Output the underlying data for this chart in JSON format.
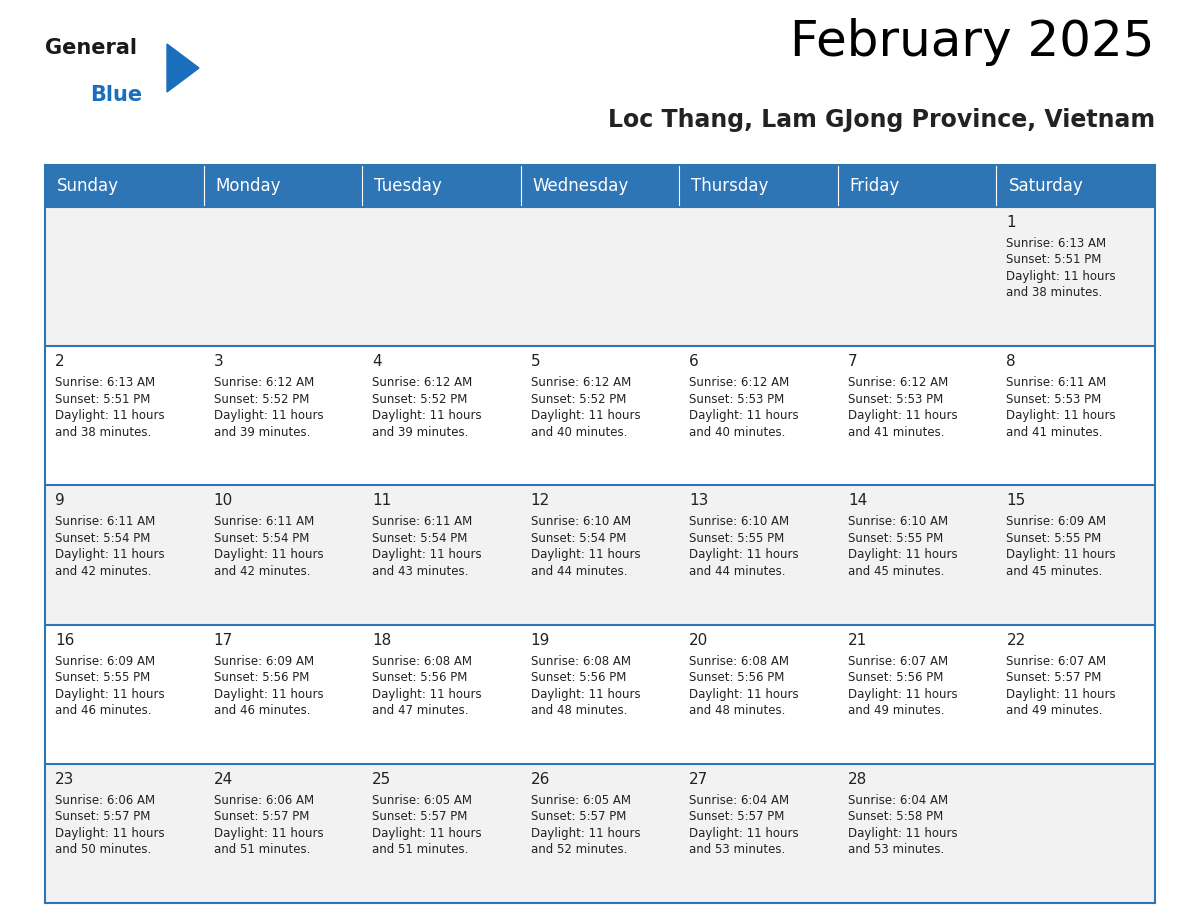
{
  "title": "February 2025",
  "subtitle": "Loc Thang, Lam GJong Province, Vietnam",
  "header_bg": "#2E75B6",
  "header_text_color": "#FFFFFF",
  "days_of_week": [
    "Sunday",
    "Monday",
    "Tuesday",
    "Wednesday",
    "Thursday",
    "Friday",
    "Saturday"
  ],
  "row_bg_odd": "#F2F2F2",
  "row_bg_even": "#FFFFFF",
  "cell_border_color": "#2E75B6",
  "text_color": "#222222",
  "day_number_color": "#222222",
  "calendar": [
    [
      {
        "day": null,
        "info": null
      },
      {
        "day": null,
        "info": null
      },
      {
        "day": null,
        "info": null
      },
      {
        "day": null,
        "info": null
      },
      {
        "day": null,
        "info": null
      },
      {
        "day": null,
        "info": null
      },
      {
        "day": 1,
        "info": "Sunrise: 6:13 AM\nSunset: 5:51 PM\nDaylight: 11 hours\nand 38 minutes."
      }
    ],
    [
      {
        "day": 2,
        "info": "Sunrise: 6:13 AM\nSunset: 5:51 PM\nDaylight: 11 hours\nand 38 minutes."
      },
      {
        "day": 3,
        "info": "Sunrise: 6:12 AM\nSunset: 5:52 PM\nDaylight: 11 hours\nand 39 minutes."
      },
      {
        "day": 4,
        "info": "Sunrise: 6:12 AM\nSunset: 5:52 PM\nDaylight: 11 hours\nand 39 minutes."
      },
      {
        "day": 5,
        "info": "Sunrise: 6:12 AM\nSunset: 5:52 PM\nDaylight: 11 hours\nand 40 minutes."
      },
      {
        "day": 6,
        "info": "Sunrise: 6:12 AM\nSunset: 5:53 PM\nDaylight: 11 hours\nand 40 minutes."
      },
      {
        "day": 7,
        "info": "Sunrise: 6:12 AM\nSunset: 5:53 PM\nDaylight: 11 hours\nand 41 minutes."
      },
      {
        "day": 8,
        "info": "Sunrise: 6:11 AM\nSunset: 5:53 PM\nDaylight: 11 hours\nand 41 minutes."
      }
    ],
    [
      {
        "day": 9,
        "info": "Sunrise: 6:11 AM\nSunset: 5:54 PM\nDaylight: 11 hours\nand 42 minutes."
      },
      {
        "day": 10,
        "info": "Sunrise: 6:11 AM\nSunset: 5:54 PM\nDaylight: 11 hours\nand 42 minutes."
      },
      {
        "day": 11,
        "info": "Sunrise: 6:11 AM\nSunset: 5:54 PM\nDaylight: 11 hours\nand 43 minutes."
      },
      {
        "day": 12,
        "info": "Sunrise: 6:10 AM\nSunset: 5:54 PM\nDaylight: 11 hours\nand 44 minutes."
      },
      {
        "day": 13,
        "info": "Sunrise: 6:10 AM\nSunset: 5:55 PM\nDaylight: 11 hours\nand 44 minutes."
      },
      {
        "day": 14,
        "info": "Sunrise: 6:10 AM\nSunset: 5:55 PM\nDaylight: 11 hours\nand 45 minutes."
      },
      {
        "day": 15,
        "info": "Sunrise: 6:09 AM\nSunset: 5:55 PM\nDaylight: 11 hours\nand 45 minutes."
      }
    ],
    [
      {
        "day": 16,
        "info": "Sunrise: 6:09 AM\nSunset: 5:55 PM\nDaylight: 11 hours\nand 46 minutes."
      },
      {
        "day": 17,
        "info": "Sunrise: 6:09 AM\nSunset: 5:56 PM\nDaylight: 11 hours\nand 46 minutes."
      },
      {
        "day": 18,
        "info": "Sunrise: 6:08 AM\nSunset: 5:56 PM\nDaylight: 11 hours\nand 47 minutes."
      },
      {
        "day": 19,
        "info": "Sunrise: 6:08 AM\nSunset: 5:56 PM\nDaylight: 11 hours\nand 48 minutes."
      },
      {
        "day": 20,
        "info": "Sunrise: 6:08 AM\nSunset: 5:56 PM\nDaylight: 11 hours\nand 48 minutes."
      },
      {
        "day": 21,
        "info": "Sunrise: 6:07 AM\nSunset: 5:56 PM\nDaylight: 11 hours\nand 49 minutes."
      },
      {
        "day": 22,
        "info": "Sunrise: 6:07 AM\nSunset: 5:57 PM\nDaylight: 11 hours\nand 49 minutes."
      }
    ],
    [
      {
        "day": 23,
        "info": "Sunrise: 6:06 AM\nSunset: 5:57 PM\nDaylight: 11 hours\nand 50 minutes."
      },
      {
        "day": 24,
        "info": "Sunrise: 6:06 AM\nSunset: 5:57 PM\nDaylight: 11 hours\nand 51 minutes."
      },
      {
        "day": 25,
        "info": "Sunrise: 6:05 AM\nSunset: 5:57 PM\nDaylight: 11 hours\nand 51 minutes."
      },
      {
        "day": 26,
        "info": "Sunrise: 6:05 AM\nSunset: 5:57 PM\nDaylight: 11 hours\nand 52 minutes."
      },
      {
        "day": 27,
        "info": "Sunrise: 6:04 AM\nSunset: 5:57 PM\nDaylight: 11 hours\nand 53 minutes."
      },
      {
        "day": 28,
        "info": "Sunrise: 6:04 AM\nSunset: 5:58 PM\nDaylight: 11 hours\nand 53 minutes."
      },
      {
        "day": null,
        "info": null
      }
    ]
  ],
  "logo_color_general": "#1a1a1a",
  "logo_color_blue": "#1a6fbd",
  "logo_triangle_color": "#1a6fbd",
  "title_fontsize": 36,
  "subtitle_fontsize": 17,
  "header_day_fontsize": 12,
  "day_num_fontsize": 11,
  "info_fontsize": 8.5
}
